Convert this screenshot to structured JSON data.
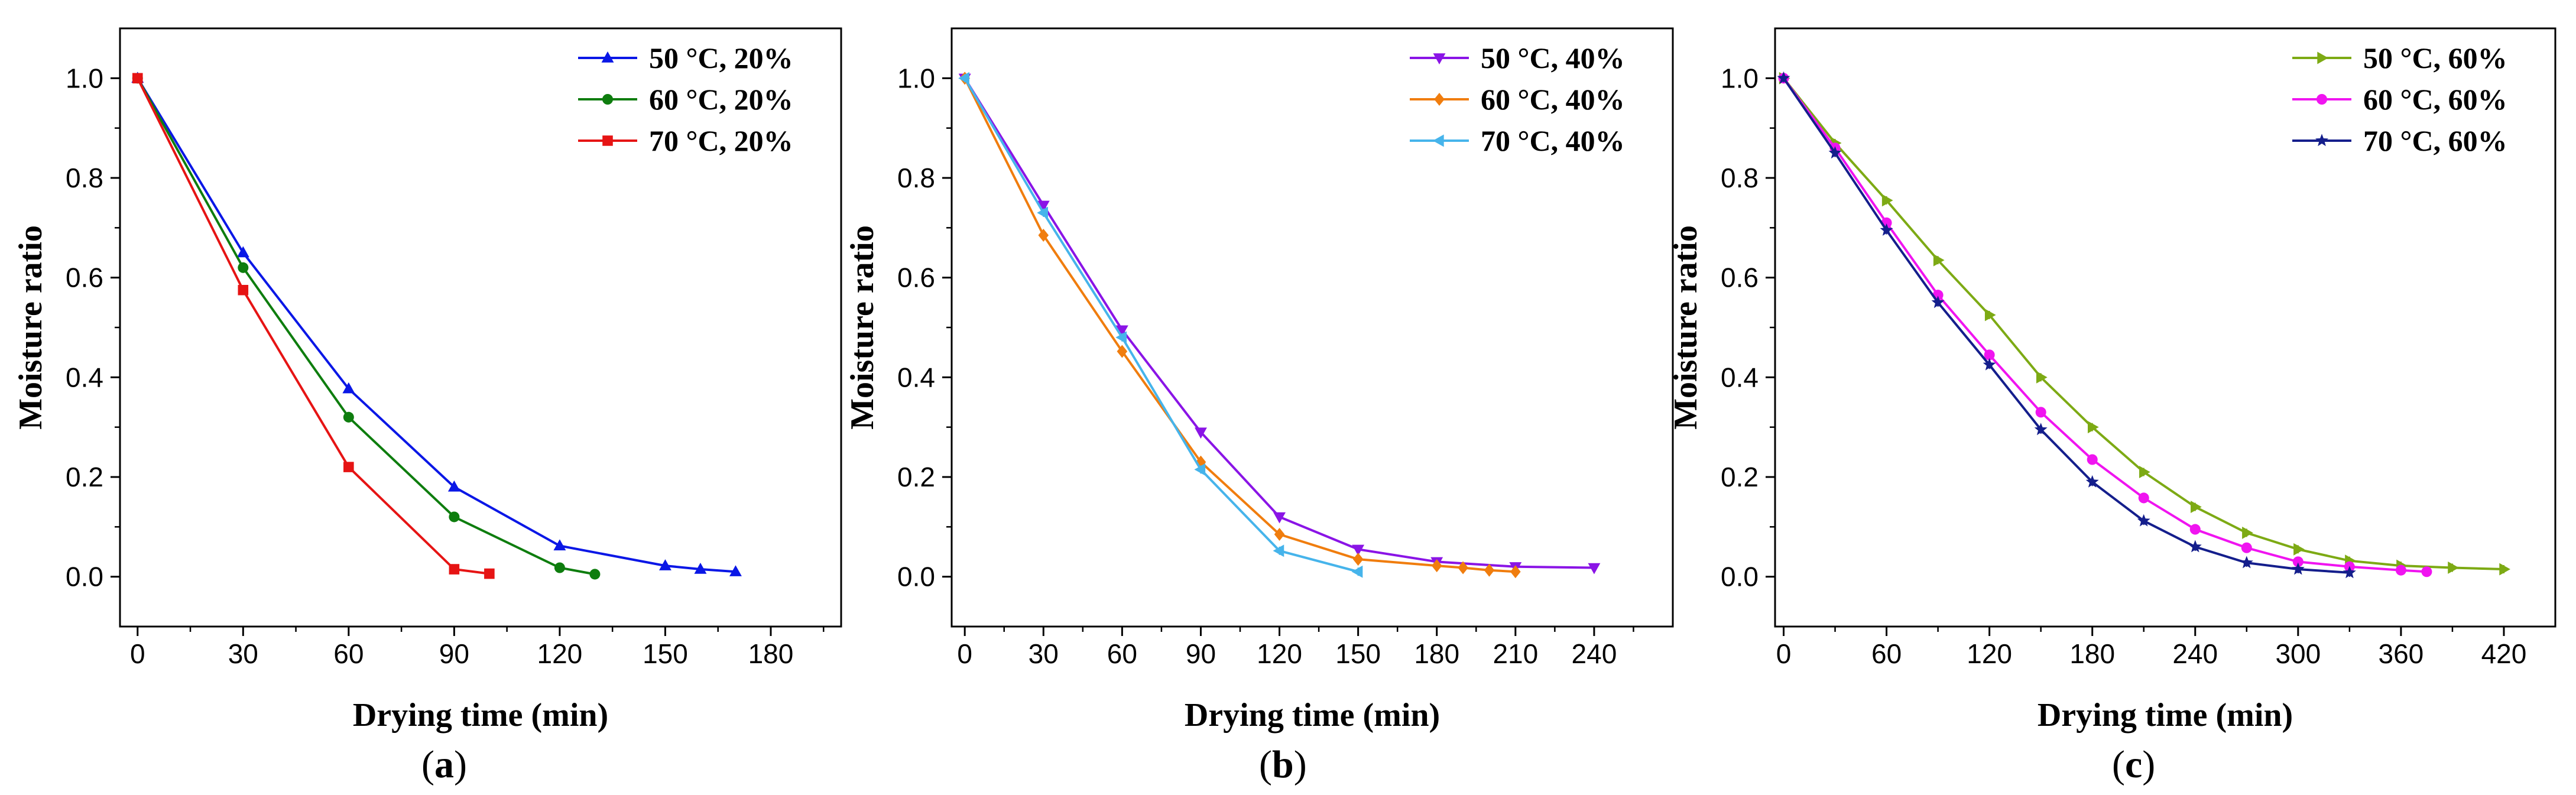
{
  "chart_data": [
    {
      "type": "line",
      "panel_label": "a",
      "xlabel": "Drying time (min)",
      "ylabel": "Moisture ratio",
      "xlim": [
        -5,
        200
      ],
      "ylim": [
        -0.1,
        1.1
      ],
      "xticks": [
        0,
        30,
        60,
        90,
        120,
        150,
        180
      ],
      "yticks": [
        0.0,
        0.2,
        0.4,
        0.6,
        0.8,
        1.0
      ],
      "xtick_labels": [
        "0",
        "30",
        "60",
        "90",
        "120",
        "150",
        "180"
      ],
      "ytick_labels": [
        "0.0",
        "0.2",
        "0.4",
        "0.6",
        "0.8",
        "1.0"
      ],
      "legend_position": "top-right",
      "series": [
        {
          "name": "50 °C, 20%",
          "color": "#0a17e6",
          "marker": "triangle-up",
          "x": [
            0,
            30,
            60,
            90,
            120,
            150,
            160,
            170
          ],
          "y": [
            1.0,
            0.65,
            0.377,
            0.18,
            0.062,
            0.022,
            0.015,
            0.01
          ]
        },
        {
          "name": "60 °C, 20%",
          "color": "#0e7d0e",
          "marker": "circle",
          "x": [
            0,
            30,
            60,
            90,
            120,
            130
          ],
          "y": [
            1.0,
            0.62,
            0.32,
            0.12,
            0.018,
            0.005
          ]
        },
        {
          "name": "70 °C, 20%",
          "color": "#e61414",
          "marker": "square",
          "x": [
            0,
            30,
            60,
            90,
            100
          ],
          "y": [
            1.0,
            0.575,
            0.22,
            0.015,
            0.006
          ]
        }
      ]
    },
    {
      "type": "line",
      "panel_label": "b",
      "xlabel": "Drying time (min)",
      "ylabel": "Moisture ratio",
      "xlim": [
        -5,
        270
      ],
      "ylim": [
        -0.1,
        1.1
      ],
      "xticks": [
        0,
        30,
        60,
        90,
        120,
        150,
        180,
        210,
        240
      ],
      "yticks": [
        0.0,
        0.2,
        0.4,
        0.6,
        0.8,
        1.0
      ],
      "xtick_labels": [
        "0",
        "30",
        "60",
        "90",
        "120",
        "150",
        "180",
        "210",
        "240"
      ],
      "ytick_labels": [
        "0.0",
        "0.2",
        "0.4",
        "0.6",
        "0.8",
        "1.0"
      ],
      "legend_position": "top-right",
      "series": [
        {
          "name": "50 °C, 40%",
          "color": "#8a14e6",
          "marker": "triangle-down",
          "x": [
            0,
            30,
            60,
            90,
            120,
            150,
            180,
            210,
            240
          ],
          "y": [
            1.0,
            0.745,
            0.495,
            0.29,
            0.12,
            0.055,
            0.03,
            0.02,
            0.018
          ]
        },
        {
          "name": "60 °C, 40%",
          "color": "#f07d0e",
          "marker": "diamond",
          "x": [
            0,
            30,
            60,
            90,
            120,
            150,
            180,
            190,
            200,
            210
          ],
          "y": [
            1.0,
            0.685,
            0.452,
            0.23,
            0.085,
            0.035,
            0.022,
            0.018,
            0.013,
            0.01
          ]
        },
        {
          "name": "70 °C, 40%",
          "color": "#46b4eb",
          "marker": "triangle-left",
          "x": [
            0,
            30,
            60,
            90,
            120,
            150
          ],
          "y": [
            1.0,
            0.73,
            0.48,
            0.215,
            0.052,
            0.01
          ]
        }
      ]
    },
    {
      "type": "line",
      "panel_label": "c",
      "xlabel": "Drying time (min)",
      "ylabel": "Moisture ratio",
      "xlim": [
        -5,
        450
      ],
      "ylim": [
        -0.1,
        1.1
      ],
      "xticks": [
        0,
        60,
        120,
        180,
        240,
        300,
        360,
        420
      ],
      "yticks": [
        0.0,
        0.2,
        0.4,
        0.6,
        0.8,
        1.0
      ],
      "xtick_labels": [
        "0",
        "60",
        "120",
        "180",
        "240",
        "300",
        "360",
        "420"
      ],
      "ytick_labels": [
        "0.0",
        "0.2",
        "0.4",
        "0.6",
        "0.8",
        "1.0"
      ],
      "legend_position": "top-right",
      "series": [
        {
          "name": "50 °C, 60%",
          "color": "#7daa14",
          "marker": "triangle-right",
          "x": [
            0,
            30,
            60,
            90,
            120,
            150,
            180,
            210,
            240,
            270,
            300,
            330,
            360,
            390,
            420
          ],
          "y": [
            1.0,
            0.87,
            0.755,
            0.635,
            0.525,
            0.4,
            0.3,
            0.21,
            0.14,
            0.088,
            0.055,
            0.032,
            0.022,
            0.018,
            0.015
          ]
        },
        {
          "name": "60 °C, 60%",
          "color": "#f014f0",
          "marker": "circle",
          "x": [
            0,
            30,
            60,
            90,
            120,
            150,
            180,
            210,
            240,
            270,
            300,
            330,
            360,
            375
          ],
          "y": [
            1.0,
            0.86,
            0.71,
            0.565,
            0.445,
            0.33,
            0.235,
            0.158,
            0.095,
            0.058,
            0.03,
            0.02,
            0.013,
            0.01
          ]
        },
        {
          "name": "70 °C, 60%",
          "color": "#141e8c",
          "marker": "star",
          "x": [
            0,
            30,
            60,
            90,
            120,
            150,
            180,
            210,
            240,
            270,
            300,
            330
          ],
          "y": [
            1.0,
            0.85,
            0.695,
            0.55,
            0.425,
            0.295,
            0.19,
            0.112,
            0.06,
            0.028,
            0.015,
            0.008
          ]
        }
      ]
    }
  ]
}
